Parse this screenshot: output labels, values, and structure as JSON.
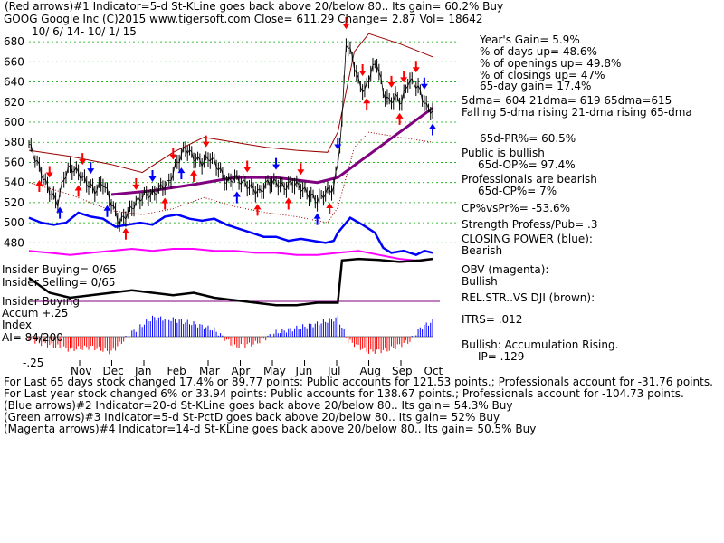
{
  "header": {
    "line1": "(Red arrows)#1 Indicator=5-d St-KLine goes back above 20/below 80.. Its gain= 60.2% Buy",
    "ticker": "GOOG   Google Inc   (C)2015 www.tigersoft.com     Close=  611.29  Change= 2.87 Vol= 18642",
    "dates": "10/ 6/ 14-  10/ 1/ 15"
  },
  "stats": {
    "years_gain": "Year's Gain= 5.9%",
    "pct_days_up": "% of days up= 48.6%",
    "pct_openings_up": "% of openings up= 49.8%",
    "pct_closings_up": "% of closings up= 47%",
    "gain_65d": "65-day gain= 17.4%",
    "dma": "5dma= 604  21dma= 619  65dma=615",
    "dma_trend": "Falling 5-dma  rising 21-dma  rising 65-dma",
    "pr65": "65d-PR%= 60.5%",
    "public": "Public is bullish",
    "op65": "65d-OP%= 97.4%",
    "professionals": "Professionals are bearish",
    "cp65": "65d-CP%= 7%",
    "cpvspr": "CP%vsPr%= -53.6%",
    "strength": "Strength Profess/Pub= .3",
    "closing_power": "CLOSING POWER (blue):",
    "closing_power_val": "Bearish",
    "obv": "OBV (magenta):",
    "obv_val": "Bullish",
    "relstr": "REL.STR..VS DJI (brown):",
    "itrs": "ITRS= .012",
    "bullish": "Bullish: Accumulation Rising.",
    "ip": "IP=  .129"
  },
  "panel": {
    "insider_buying1": "Insider Buying= 0/65",
    "insider_selling": "Insider Selling= 0/65",
    "insider_buying2": "Insider Buying",
    "accum": "Accum +.25",
    "index": "Index",
    "ai": "AI= 84/200",
    "neg": "-.25"
  },
  "footer": {
    "line1": "For Last 65 days stock changed  17.4% or  89.77 points:  Public accounts for  121.53 points.;  Professionals account for -31.76 points.",
    "line2": "For Last year stock changed  6% or  33.94 points:  Public accounts for  138.67 points.;  Professionals account for -104.73 points.",
    "line3": "(Blue arrows)#2 Indicator=20-d St-KLine goes back above 20/below 80.. Its gain= 54.3% Buy",
    "line4": "(Green arrows)#3 Indicator=5-d St-PctD goes back above 20/below 80.. Its gain= 52% Buy",
    "line5": "(Magenta arrows)#4 Indicator=14-d St-KLine goes back above 20/below 80.. Its gain= 50.5% Buy"
  },
  "colors": {
    "price": "#000000",
    "band": "#990000",
    "ma65": "#800080",
    "closing_power": "#0000ff",
    "obv": "#ff00ff",
    "red_arrow": "#ff0000",
    "blue_arrow": "#0000ff",
    "grid": "#00aa00",
    "accum_pos": "#0000ff",
    "accum_neg": "#ff0000"
  },
  "chart_data": {
    "type": "line",
    "ylim": [
      465,
      690
    ],
    "yticks": [
      480,
      500,
      520,
      540,
      560,
      580,
      600,
      620,
      640,
      660,
      680
    ],
    "months": [
      "Nov",
      "Dec",
      "Jan",
      "Feb",
      "Mar",
      "Apr",
      "May",
      "Jun",
      "Jul",
      "Aug",
      "Sep",
      "Oct"
    ],
    "close": [
      [
        0,
        578
      ],
      [
        4,
        560
      ],
      [
        8,
        540
      ],
      [
        11,
        528
      ],
      [
        14,
        520
      ],
      [
        17,
        545
      ],
      [
        20,
        555
      ],
      [
        24,
        550
      ],
      [
        28,
        540
      ],
      [
        32,
        532
      ],
      [
        36,
        540
      ],
      [
        40,
        520
      ],
      [
        44,
        500
      ],
      [
        48,
        510
      ],
      [
        52,
        520
      ],
      [
        56,
        528
      ],
      [
        60,
        528
      ],
      [
        64,
        535
      ],
      [
        68,
        540
      ],
      [
        72,
        560
      ],
      [
        76,
        575
      ],
      [
        80,
        565
      ],
      [
        84,
        560
      ],
      [
        88,
        565
      ],
      [
        92,
        555
      ],
      [
        96,
        540
      ],
      [
        100,
        545
      ],
      [
        104,
        540
      ],
      [
        108,
        535
      ],
      [
        112,
        530
      ],
      [
        116,
        540
      ],
      [
        120,
        540
      ],
      [
        124,
        535
      ],
      [
        128,
        540
      ],
      [
        132,
        535
      ],
      [
        136,
        528
      ],
      [
        140,
        522
      ],
      [
        144,
        530
      ],
      [
        148,
        535
      ],
      [
        150,
        560
      ],
      [
        152,
        600
      ],
      [
        154,
        680
      ],
      [
        157,
        665
      ],
      [
        160,
        640
      ],
      [
        163,
        630
      ],
      [
        166,
        650
      ],
      [
        169,
        660
      ],
      [
        172,
        630
      ],
      [
        175,
        620
      ],
      [
        178,
        625
      ],
      [
        181,
        620
      ],
      [
        184,
        640
      ],
      [
        187,
        640
      ],
      [
        190,
        630
      ],
      [
        193,
        615
      ],
      [
        196,
        611.29
      ]
    ],
    "ma65": [
      [
        40,
        528
      ],
      [
        60,
        532
      ],
      [
        80,
        538
      ],
      [
        100,
        545
      ],
      [
        120,
        545
      ],
      [
        140,
        540
      ],
      [
        150,
        545
      ],
      [
        160,
        560
      ],
      [
        170,
        575
      ],
      [
        180,
        590
      ],
      [
        190,
        605
      ],
      [
        196,
        614
      ]
    ],
    "band_upper": [
      [
        0,
        572
      ],
      [
        20,
        566
      ],
      [
        40,
        558
      ],
      [
        55,
        550
      ],
      [
        70,
        570
      ],
      [
        85,
        585
      ],
      [
        100,
        580
      ],
      [
        115,
        575
      ],
      [
        130,
        572
      ],
      [
        145,
        570
      ],
      [
        150,
        590
      ],
      [
        158,
        670
      ],
      [
        165,
        688
      ],
      [
        180,
        678
      ],
      [
        196,
        665
      ]
    ],
    "band_lower": [
      [
        0,
        540
      ],
      [
        20,
        528
      ],
      [
        40,
        512
      ],
      [
        55,
        508
      ],
      [
        70,
        514
      ],
      [
        85,
        525
      ],
      [
        100,
        516
      ],
      [
        115,
        510
      ],
      [
        130,
        506
      ],
      [
        145,
        500
      ],
      [
        150,
        515
      ],
      [
        158,
        575
      ],
      [
        165,
        590
      ],
      [
        180,
        585
      ],
      [
        196,
        580
      ]
    ],
    "closing_power": [
      [
        0,
        505
      ],
      [
        6,
        500
      ],
      [
        12,
        498
      ],
      [
        18,
        500
      ],
      [
        24,
        510
      ],
      [
        30,
        506
      ],
      [
        36,
        504
      ],
      [
        42,
        496
      ],
      [
        48,
        498
      ],
      [
        54,
        500
      ],
      [
        60,
        498
      ],
      [
        66,
        506
      ],
      [
        72,
        508
      ],
      [
        78,
        504
      ],
      [
        84,
        502
      ],
      [
        90,
        504
      ],
      [
        96,
        498
      ],
      [
        102,
        494
      ],
      [
        108,
        490
      ],
      [
        114,
        486
      ],
      [
        120,
        486
      ],
      [
        126,
        482
      ],
      [
        132,
        484
      ],
      [
        138,
        482
      ],
      [
        144,
        480
      ],
      [
        148,
        482
      ],
      [
        150,
        490
      ],
      [
        156,
        505
      ],
      [
        162,
        498
      ],
      [
        168,
        490
      ],
      [
        172,
        475
      ],
      [
        176,
        470
      ],
      [
        182,
        472
      ],
      [
        188,
        468
      ],
      [
        192,
        472
      ],
      [
        196,
        470
      ]
    ],
    "obv": [
      [
        0,
        472
      ],
      [
        10,
        470
      ],
      [
        20,
        468
      ],
      [
        30,
        470
      ],
      [
        40,
        472
      ],
      [
        50,
        474
      ],
      [
        60,
        472
      ],
      [
        70,
        474
      ],
      [
        80,
        474
      ],
      [
        90,
        472
      ],
      [
        100,
        472
      ],
      [
        110,
        470
      ],
      [
        120,
        470
      ],
      [
        130,
        468
      ],
      [
        140,
        468
      ],
      [
        150,
        470
      ],
      [
        160,
        472
      ],
      [
        170,
        468
      ],
      [
        180,
        464
      ],
      [
        190,
        462
      ],
      [
        196,
        464
      ]
    ],
    "red_arrows": [
      10,
      26,
      52,
      70,
      86,
      106,
      132,
      154,
      162,
      176,
      182,
      188
    ],
    "blue_arrows": [
      30,
      60,
      120,
      150,
      192
    ],
    "red_up_arrows": [
      5,
      24,
      47,
      66,
      80,
      111,
      126,
      146,
      164,
      180
    ],
    "blue_up_arrows": [
      15,
      38,
      74,
      101,
      140,
      196
    ],
    "accum": [
      [
        0,
        -0.05
      ],
      [
        10,
        -0.1
      ],
      [
        20,
        -0.15
      ],
      [
        30,
        -0.12
      ],
      [
        40,
        -0.18
      ],
      [
        50,
        0.05
      ],
      [
        60,
        0.22
      ],
      [
        70,
        0.2
      ],
      [
        80,
        0.15
      ],
      [
        90,
        0.08
      ],
      [
        100,
        -0.12
      ],
      [
        110,
        -0.08
      ],
      [
        120,
        0.05
      ],
      [
        130,
        0.1
      ],
      [
        140,
        0.15
      ],
      [
        150,
        0.22
      ],
      [
        155,
        -0.05
      ],
      [
        165,
        -0.18
      ],
      [
        175,
        -0.15
      ],
      [
        185,
        -0.05
      ],
      [
        190,
        0.1
      ],
      [
        196,
        0.18
      ]
    ],
    "insider_line": [
      [
        0,
        0.6
      ],
      [
        10,
        0.3
      ],
      [
        20,
        0.2
      ],
      [
        30,
        0.25
      ],
      [
        40,
        0.3
      ],
      [
        50,
        0.35
      ],
      [
        60,
        0.3
      ],
      [
        70,
        0.25
      ],
      [
        80,
        0.3
      ],
      [
        90,
        0.2
      ],
      [
        100,
        0.15
      ],
      [
        110,
        0.1
      ],
      [
        120,
        0.05
      ],
      [
        130,
        0.05
      ],
      [
        140,
        0.1
      ],
      [
        150,
        0.1
      ],
      [
        152,
        0.95
      ],
      [
        160,
        0.98
      ],
      [
        170,
        0.96
      ],
      [
        180,
        0.92
      ],
      [
        190,
        0.95
      ],
      [
        196,
        0.98
      ]
    ]
  }
}
